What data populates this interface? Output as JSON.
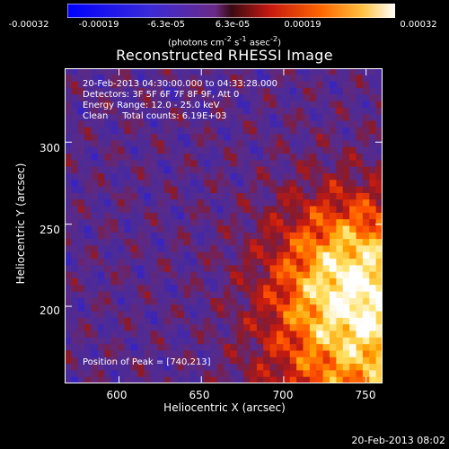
{
  "colorbar": {
    "ticks": [
      "-0.00032",
      "-0.00019",
      "-6.3e-05",
      "6.3e-05",
      "0.00019",
      "0.00032"
    ],
    "unit_prefix": "(photons cm",
    "unit_exp1": "-2",
    "unit_mid1": " s",
    "unit_exp2": "-1",
    "unit_mid2": " asec",
    "unit_exp3": "-2",
    "unit_suffix": ")",
    "range": [
      -0.00032,
      0.00032
    ]
  },
  "info": {
    "time_range": "20-Feb-2013 04:30:00.000 to 04:33:28.000",
    "detectors": "Detectors: 3F 5F 6F 7F 8F 9F, Att 0",
    "energy": "Energy Range: 12.0 - 25.0 keV",
    "method": "Clean     Total counts: 6.19E+03",
    "peak": "Position of Peak = [740,213]"
  },
  "timestamp": "20-Feb-2013 08:02",
  "chart_data": {
    "type": "heatmap",
    "title": "Reconstructed RHESSI Image",
    "xlabel": "Heliocentric X (arcsec)",
    "ylabel": "Heliocentric Y (arcsec)",
    "xlim": [
      567,
      760
    ],
    "ylim": [
      153,
      345
    ],
    "xticks": [
      "600",
      "650",
      "700",
      "750"
    ],
    "yticks": [
      "200",
      "250",
      "300"
    ],
    "peak": [
      740,
      213
    ],
    "colormap": [
      "#0000ff",
      "#3322cc",
      "#4a2a9a",
      "#5a2a88",
      "#8a1a2a",
      "#c41a10",
      "#ff5000",
      "#ffa000",
      "#ffe060",
      "#ffffff"
    ]
  }
}
